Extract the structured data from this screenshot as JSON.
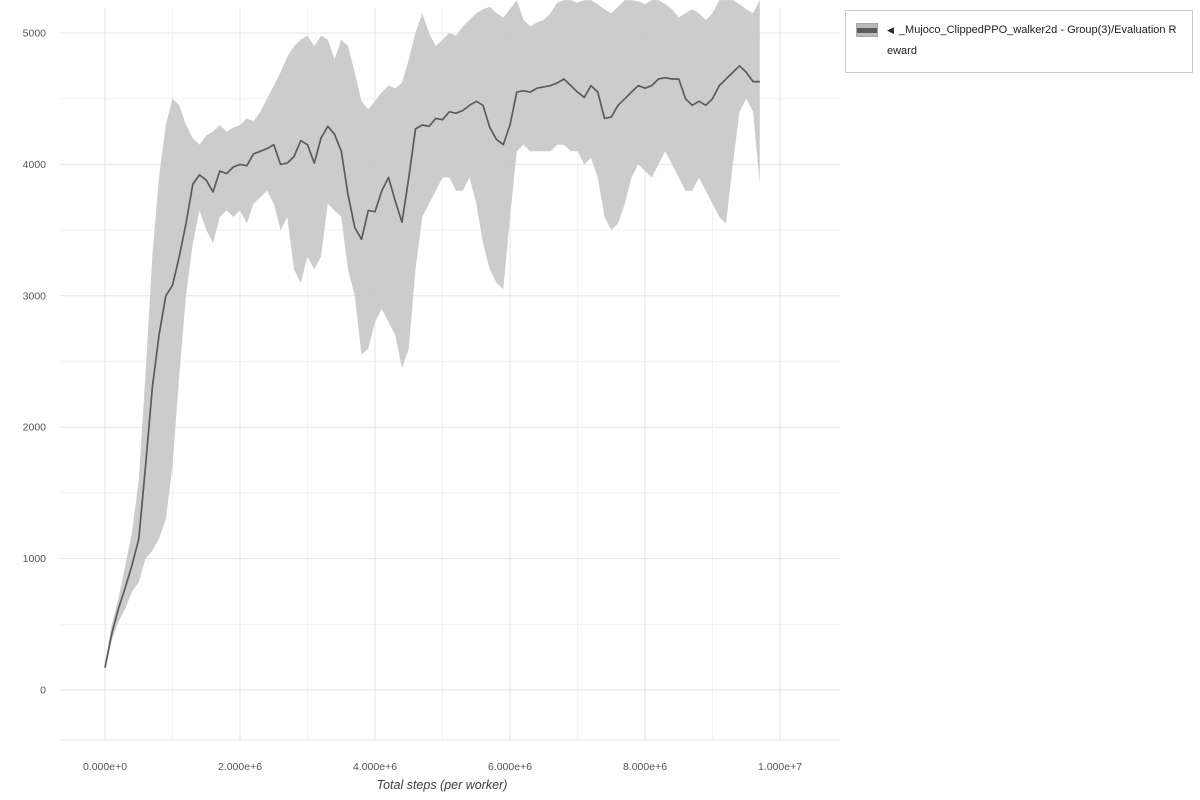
{
  "page": {
    "background": "#ffffff"
  },
  "legend": {
    "toggle_glyph": "◀",
    "label": "_Mujoco_ClippedPPO_walker2d - Group(3)/Evaluation Reward"
  },
  "chart_data": {
    "type": "line",
    "title": "",
    "xlabel": "Total steps (per worker)",
    "ylabel": "",
    "grid": true,
    "legend_position": "top-right",
    "x_axis": {
      "label": "Total steps (per worker)",
      "unit_scale": 1000000,
      "range_millions": [
        0,
        10
      ],
      "ticks": [
        {
          "v_millions": 0,
          "label": "0.000e+0"
        },
        {
          "v_millions": 2,
          "label": "2.000e+6"
        },
        {
          "v_millions": 4,
          "label": "4.000e+6"
        },
        {
          "v_millions": 6,
          "label": "6.000e+6"
        },
        {
          "v_millions": 8,
          "label": "8.000e+6"
        },
        {
          "v_millions": 10,
          "label": "1.000e+7"
        }
      ]
    },
    "y_axis": {
      "label": "",
      "range": [
        -380,
        5180
      ],
      "minor_step": 500,
      "ticks": [
        {
          "v": 0,
          "label": "0"
        },
        {
          "v": 1000,
          "label": "1000"
        },
        {
          "v": 2000,
          "label": "2000"
        },
        {
          "v": 3000,
          "label": "3000"
        },
        {
          "v": 4000,
          "label": "4000"
        },
        {
          "v": 5000,
          "label": "5000"
        }
      ]
    },
    "colors": {
      "band": "#c6c6c6",
      "line": "#5b5b5b",
      "grid_major": "#e4e4e4",
      "grid_minor": "#f2f2f2",
      "tick_text": "#555555",
      "legend_border": "#c9c9c9",
      "swatch_gray": "#b9b9b9",
      "swatch_line": "#5b5b5b"
    },
    "series": [
      {
        "name": "_Mujoco_ClippedPPO_walker2d - Group(3)/Evaluation Reward",
        "x_millions": [
          0,
          0.1,
          0.2,
          0.3,
          0.4,
          0.5,
          0.6,
          0.7,
          0.8,
          0.9,
          1,
          1.1,
          1.2,
          1.3,
          1.4,
          1.5,
          1.6,
          1.7,
          1.8,
          1.9,
          2,
          2.1,
          2.2,
          2.3,
          2.4,
          2.5,
          2.6,
          2.7,
          2.8,
          2.9,
          3,
          3.1,
          3.2,
          3.3,
          3.4,
          3.5,
          3.6,
          3.7,
          3.8,
          3.9,
          4,
          4.1,
          4.2,
          4.3,
          4.4,
          4.5,
          4.6,
          4.7,
          4.8,
          4.9,
          5,
          5.1,
          5.2,
          5.3,
          5.4,
          5.5,
          5.6,
          5.7,
          5.8,
          5.9,
          6,
          6.1,
          6.2,
          6.3,
          6.4,
          6.5,
          6.6,
          6.7,
          6.8,
          6.9,
          7,
          7.1,
          7.2,
          7.3,
          7.4,
          7.5,
          7.6,
          7.7,
          7.8,
          7.9,
          8,
          8.1,
          8.2,
          8.3,
          8.4,
          8.5,
          8.6,
          8.7,
          8.8,
          8.9,
          9,
          9.1,
          9.2,
          9.3,
          9.4,
          9.5,
          9.6,
          9.7
        ],
        "mean": [
          170,
          430,
          620,
          780,
          950,
          1150,
          1700,
          2300,
          2700,
          3000,
          3080,
          3300,
          3550,
          3850,
          3920,
          3880,
          3790,
          3950,
          3930,
          3980,
          4000,
          3990,
          4080,
          4100,
          4120,
          4150,
          4000,
          4010,
          4060,
          4180,
          4150,
          4010,
          4200,
          4290,
          4230,
          4100,
          3770,
          3520,
          3430,
          3650,
          3640,
          3800,
          3900,
          3720,
          3560,
          3900,
          4270,
          4300,
          4290,
          4350,
          4340,
          4400,
          4390,
          4410,
          4450,
          4480,
          4450,
          4280,
          4190,
          4150,
          4300,
          4550,
          4560,
          4550,
          4580,
          4590,
          4600,
          4620,
          4650,
          4600,
          4550,
          4510,
          4600,
          4550,
          4350,
          4360,
          4450,
          4500,
          4550,
          4600,
          4580,
          4600,
          4650,
          4660,
          4650,
          4650,
          4500,
          4450,
          4480,
          4450,
          4500,
          4600,
          4650,
          4700,
          4750,
          4700,
          4630,
          4630
        ],
        "band_low": [
          150,
          380,
          520,
          620,
          750,
          820,
          1000,
          1060,
          1150,
          1300,
          1700,
          2400,
          3000,
          3400,
          3650,
          3500,
          3400,
          3600,
          3650,
          3600,
          3650,
          3550,
          3700,
          3750,
          3800,
          3700,
          3500,
          3600,
          3200,
          3100,
          3300,
          3200,
          3300,
          3700,
          3650,
          3600,
          3200,
          3000,
          2550,
          2600,
          2800,
          2900,
          2800,
          2700,
          2450,
          2600,
          3200,
          3600,
          3700,
          3800,
          3900,
          3900,
          3800,
          3800,
          3900,
          3700,
          3400,
          3200,
          3100,
          3050,
          3600,
          4100,
          4150,
          4100,
          4100,
          4100,
          4100,
          4150,
          4150,
          4100,
          4100,
          4000,
          4050,
          3900,
          3600,
          3500,
          3550,
          3700,
          3900,
          4000,
          3950,
          3900,
          4000,
          4100,
          4000,
          3900,
          3800,
          3800,
          3900,
          3800,
          3700,
          3600,
          3550,
          4000,
          4400,
          4500,
          4400,
          3850
        ],
        "band_high": [
          200,
          500,
          700,
          950,
          1200,
          1600,
          2400,
          3300,
          3900,
          4300,
          4500,
          4450,
          4300,
          4200,
          4150,
          4220,
          4250,
          4300,
          4250,
          4280,
          4300,
          4350,
          4330,
          4400,
          4500,
          4600,
          4700,
          4820,
          4900,
          4950,
          4980,
          4900,
          4980,
          4950,
          4800,
          4950,
          4900,
          4700,
          4480,
          4420,
          4480,
          4550,
          4600,
          4580,
          4620,
          4800,
          5000,
          5150,
          5000,
          4900,
          4950,
          5000,
          4980,
          5050,
          5100,
          5150,
          5180,
          5200,
          5150,
          5120,
          5180,
          5250,
          5100,
          5050,
          5080,
          5100,
          5150,
          5230,
          5250,
          5250,
          5230,
          5250,
          5250,
          5220,
          5180,
          5150,
          5200,
          5250,
          5250,
          5240,
          5220,
          5250,
          5250,
          5220,
          5180,
          5120,
          5150,
          5180,
          5150,
          5100,
          5150,
          5250,
          5250,
          5250,
          5220,
          5180,
          5150,
          5250
        ]
      }
    ]
  }
}
